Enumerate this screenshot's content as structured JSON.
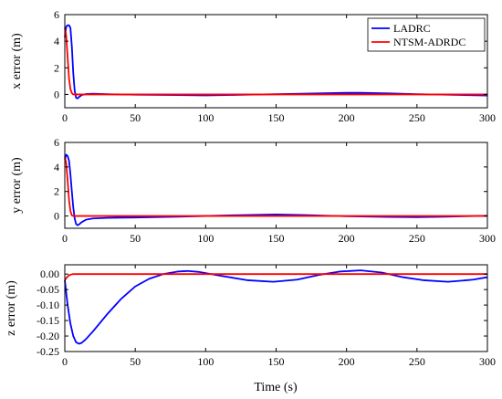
{
  "chart_data": [
    {
      "type": "line",
      "ylabel": "x error (m)",
      "xlim": [
        0,
        300
      ],
      "ylim": [
        -1,
        6
      ],
      "xticks": [
        0,
        50,
        100,
        150,
        200,
        250,
        300
      ],
      "yticks": [
        0,
        2,
        4,
        6
      ],
      "legend": {
        "placement": "top-right",
        "entries": [
          "LADRC",
          "NTSM-ADRDC"
        ]
      },
      "series": [
        {
          "name": "LADRC",
          "color": "#0000ff",
          "x": [
            0,
            1,
            2,
            3,
            4,
            5,
            6,
            7,
            8,
            9,
            10,
            12,
            15,
            20,
            30,
            50,
            80,
            100,
            120,
            150,
            180,
            200,
            210,
            230,
            250,
            280,
            300
          ],
          "y": [
            4.3,
            5.1,
            5.2,
            5.2,
            5.0,
            3.6,
            1.6,
            0.3,
            -0.25,
            -0.3,
            -0.2,
            -0.05,
            0.03,
            0.05,
            0.02,
            -0.02,
            -0.05,
            -0.07,
            -0.04,
            0.02,
            0.08,
            0.12,
            0.12,
            0.08,
            0.02,
            -0.04,
            -0.08
          ]
        },
        {
          "name": "NTSM-ADRDC",
          "color": "#ff0000",
          "x": [
            0,
            1,
            2,
            3,
            4,
            5,
            6,
            8,
            10,
            15,
            20,
            50,
            100,
            150,
            200,
            250,
            300
          ],
          "y": [
            5.0,
            4.4,
            2.8,
            1.2,
            0.4,
            0.1,
            0.0,
            0.0,
            0.0,
            0.0,
            0.0,
            0.0,
            0.0,
            0.0,
            0.0,
            0.0,
            0.0
          ]
        }
      ]
    },
    {
      "type": "line",
      "ylabel": "y error (m)",
      "xlim": [
        0,
        300
      ],
      "ylim": [
        -1,
        6
      ],
      "xticks": [
        0,
        50,
        100,
        150,
        200,
        250,
        300
      ],
      "yticks": [
        0,
        2,
        4,
        6
      ],
      "series": [
        {
          "name": "LADRC",
          "color": "#0000ff",
          "x": [
            0,
            1,
            2,
            3,
            4,
            5,
            6,
            7,
            8,
            9,
            10,
            12,
            15,
            20,
            30,
            50,
            80,
            100,
            120,
            150,
            170,
            200,
            230,
            250,
            270,
            300
          ],
          "y": [
            4.6,
            5.0,
            4.9,
            4.5,
            3.4,
            2.0,
            0.7,
            -0.2,
            -0.65,
            -0.75,
            -0.7,
            -0.5,
            -0.3,
            -0.2,
            -0.15,
            -0.12,
            -0.06,
            0.0,
            0.06,
            0.12,
            0.08,
            -0.02,
            -0.08,
            -0.1,
            -0.06,
            0.02
          ]
        },
        {
          "name": "NTSM-ADRDC",
          "color": "#ff0000",
          "x": [
            0,
            1,
            2,
            3,
            4,
            5,
            6,
            8,
            10,
            15,
            20,
            50,
            100,
            150,
            200,
            250,
            300
          ],
          "y": [
            4.8,
            4.3,
            2.9,
            1.3,
            0.4,
            0.05,
            0.0,
            0.0,
            0.0,
            0.0,
            0.0,
            0.0,
            0.0,
            0.0,
            0.0,
            0.0,
            0.0
          ]
        }
      ]
    },
    {
      "type": "line",
      "xlabel": "Time (s)",
      "ylabel": "z error (m)",
      "xlim": [
        0,
        300
      ],
      "ylim": [
        -0.25,
        0.03
      ],
      "xticks": [
        0,
        50,
        100,
        150,
        200,
        250,
        300
      ],
      "yticks": [
        0.0,
        -0.05,
        -0.1,
        -0.15,
        -0.2,
        -0.25
      ],
      "ytick_labels": [
        "0.00",
        "-0.05",
        "-0.10",
        "-0.15",
        "-0.20",
        "-0.25"
      ],
      "series": [
        {
          "name": "LADRC",
          "color": "#0000ff",
          "x": [
            0,
            2,
            4,
            6,
            8,
            10,
            12,
            15,
            20,
            30,
            40,
            50,
            60,
            70,
            80,
            87,
            95,
            110,
            130,
            148,
            165,
            180,
            195,
            210,
            225,
            240,
            255,
            272,
            290,
            300
          ],
          "y": [
            -0.02,
            -0.1,
            -0.16,
            -0.2,
            -0.22,
            -0.225,
            -0.222,
            -0.21,
            -0.185,
            -0.13,
            -0.08,
            -0.04,
            -0.015,
            0.0,
            0.008,
            0.01,
            0.007,
            -0.005,
            -0.02,
            -0.025,
            -0.018,
            -0.003,
            0.008,
            0.012,
            0.005,
            -0.01,
            -0.02,
            -0.025,
            -0.018,
            -0.01
          ]
        },
        {
          "name": "NTSM-ADRDC",
          "color": "#ff0000",
          "x": [
            0,
            1,
            2,
            3,
            4,
            5,
            6,
            8,
            10,
            20,
            50,
            100,
            150,
            200,
            250,
            300
          ],
          "y": [
            -0.02,
            -0.013,
            -0.008,
            -0.004,
            -0.002,
            -0.001,
            0.0,
            0.0,
            0.0,
            0.0,
            0.0,
            0.0,
            0.0,
            0.0,
            0.0,
            0.0
          ]
        }
      ]
    }
  ]
}
